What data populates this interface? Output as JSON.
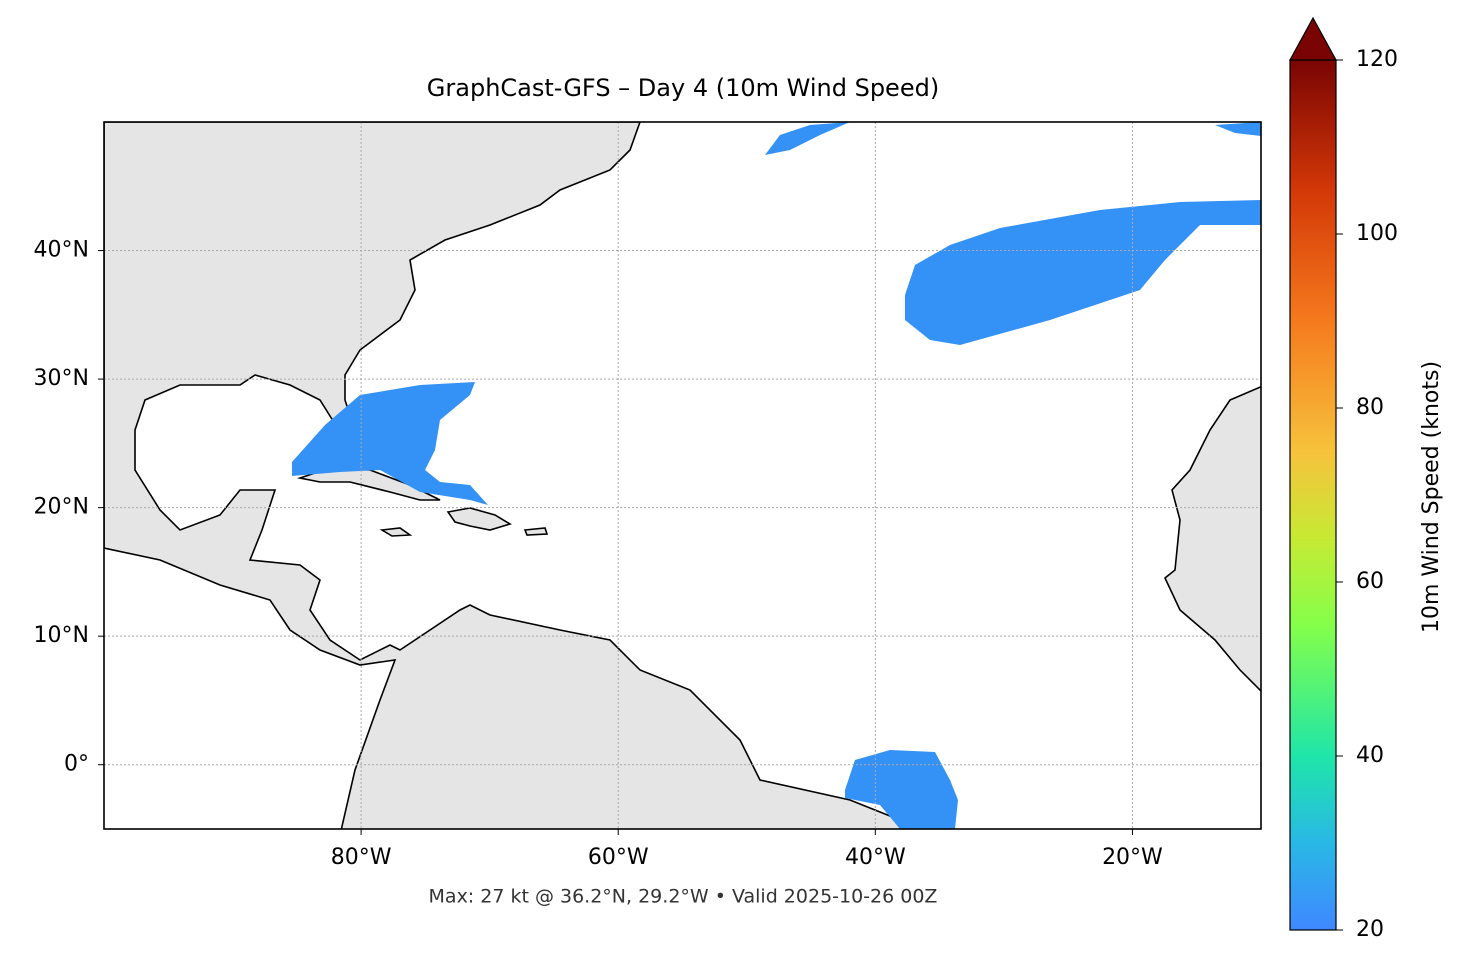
{
  "map": {
    "type": "map",
    "title": "GraphCast-GFS – Day 4 (10m Wind Speed)",
    "footer": "Max: 27 kt @ 36.2°N, 29.2°W • Valid 2025-10-26 00Z",
    "xlim": [
      -100,
      -10
    ],
    "ylim": [
      -5,
      50
    ],
    "xticks": [
      {
        "value": -80,
        "label": "80°W"
      },
      {
        "value": -60,
        "label": "60°W"
      },
      {
        "value": -40,
        "label": "40°W"
      },
      {
        "value": -20,
        "label": "20°W"
      }
    ],
    "yticks": [
      {
        "value": 0,
        "label": "0°"
      },
      {
        "value": 10,
        "label": "10°N"
      },
      {
        "value": 20,
        "label": "20°N"
      },
      {
        "value": 30,
        "label": "30°N"
      },
      {
        "value": 40,
        "label": "40°N"
      }
    ],
    "grid": true,
    "colorbar": {
      "label": "10m Wind Speed (knots)",
      "lim": [
        20,
        120
      ],
      "ticks": [
        20,
        40,
        60,
        80,
        100,
        120
      ]
    }
  }
}
